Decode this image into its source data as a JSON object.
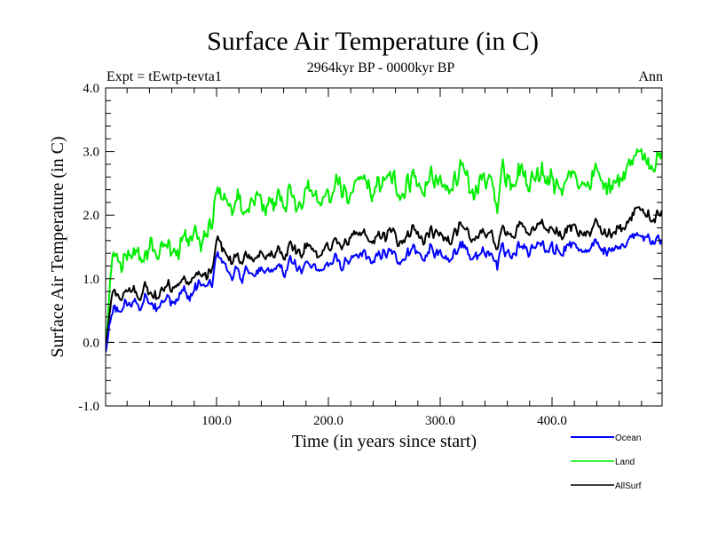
{
  "chart_data": {
    "type": "line",
    "title": "Surface Air Temperature (in C)",
    "subtitle": "2964kyr BP - 0000kyr BP",
    "left_label": "Expt = tEwtp-tevta1",
    "right_label": "Ann",
    "xlabel": "Time (in years since start)",
    "ylabel": "Surface Air Temperature (in C)",
    "xlim": [
      1,
      498
    ],
    "ylim": [
      -1.0,
      4.0
    ],
    "x_ticks": [
      100,
      200,
      300,
      400
    ],
    "x_tick_labels": [
      "100.0",
      "200.0",
      "300.0",
      "400.0"
    ],
    "y_ticks": [
      -1,
      0,
      1,
      2,
      3,
      4
    ],
    "y_tick_labels": [
      "-1.0",
      "0.0",
      "1.0",
      "2.0",
      "3.0",
      "4.0"
    ],
    "reference_line": {
      "y": 0.0,
      "style": "dashed"
    },
    "legend_position": "bottom-right",
    "grid": false,
    "series": [
      {
        "name": "Ocean",
        "color": "#0000ff",
        "x_step": 5,
        "x_start": 1,
        "values": [
          -0.15,
          0.45,
          0.5,
          0.55,
          0.6,
          0.62,
          0.55,
          0.7,
          0.58,
          0.5,
          0.62,
          0.72,
          0.68,
          0.75,
          0.8,
          0.7,
          0.85,
          0.9,
          0.82,
          0.95,
          1.4,
          1.3,
          1.05,
          1.1,
          1.0,
          1.15,
          1.05,
          1.1,
          1.2,
          1.08,
          1.1,
          1.25,
          1.15,
          1.3,
          1.2,
          1.1,
          1.25,
          1.2,
          1.15,
          1.2,
          1.22,
          1.3,
          1.2,
          1.25,
          1.35,
          1.3,
          1.4,
          1.3,
          1.25,
          1.4,
          1.35,
          1.45,
          1.35,
          1.3,
          1.4,
          1.5,
          1.35,
          1.3,
          1.45,
          1.38,
          1.35,
          1.3,
          1.4,
          1.5,
          1.45,
          1.35,
          1.3,
          1.45,
          1.4,
          1.35,
          1.25,
          1.5,
          1.4,
          1.45,
          1.55,
          1.5,
          1.45,
          1.55,
          1.6,
          1.45,
          1.5,
          1.4,
          1.45,
          1.55,
          1.5,
          1.45,
          1.4,
          1.5,
          1.55,
          1.45,
          1.5,
          1.45,
          1.55,
          1.5,
          1.65,
          1.75,
          1.6,
          1.65,
          1.6,
          1.6
        ]
      },
      {
        "name": "Land",
        "color": "#00ee00",
        "x_step": 5,
        "x_start": 1,
        "values": [
          -0.1,
          1.2,
          1.35,
          1.25,
          1.4,
          1.3,
          1.45,
          1.25,
          1.5,
          1.35,
          1.5,
          1.55,
          1.6,
          1.45,
          1.65,
          1.6,
          1.75,
          1.55,
          1.7,
          1.8,
          2.45,
          2.3,
          2.2,
          2.1,
          2.25,
          2.0,
          2.15,
          2.3,
          2.2,
          2.1,
          2.15,
          2.35,
          2.25,
          2.4,
          2.15,
          2.05,
          2.5,
          2.3,
          2.25,
          2.35,
          2.3,
          2.4,
          2.55,
          2.3,
          2.35,
          2.5,
          2.6,
          2.4,
          2.3,
          2.5,
          2.55,
          2.6,
          2.45,
          2.35,
          2.5,
          2.65,
          2.45,
          2.35,
          2.55,
          2.5,
          2.45,
          2.35,
          2.55,
          2.7,
          2.6,
          2.4,
          2.25,
          2.65,
          2.55,
          2.45,
          2.2,
          2.8,
          2.55,
          2.6,
          2.75,
          2.6,
          2.5,
          2.65,
          2.8,
          2.55,
          2.6,
          2.4,
          2.5,
          2.65,
          2.6,
          2.5,
          2.4,
          2.55,
          2.7,
          2.5,
          2.55,
          2.45,
          2.65,
          2.55,
          2.8,
          3.1,
          2.8,
          2.9,
          2.75,
          2.95
        ]
      },
      {
        "name": "AllSurf",
        "color": "#000000",
        "x_step": 5,
        "x_start": 1,
        "values": [
          -0.1,
          0.7,
          0.75,
          0.72,
          0.8,
          0.78,
          0.7,
          0.88,
          0.75,
          0.7,
          0.82,
          0.92,
          0.88,
          0.95,
          1.0,
          0.92,
          1.05,
          1.1,
          1.0,
          1.15,
          1.65,
          1.5,
          1.3,
          1.32,
          1.25,
          1.38,
          1.28,
          1.35,
          1.45,
          1.3,
          1.35,
          1.5,
          1.4,
          1.55,
          1.45,
          1.35,
          1.55,
          1.45,
          1.4,
          1.5,
          1.48,
          1.6,
          1.5,
          1.55,
          1.7,
          1.6,
          1.72,
          1.6,
          1.55,
          1.7,
          1.65,
          1.75,
          1.65,
          1.6,
          1.7,
          1.82,
          1.65,
          1.6,
          1.75,
          1.7,
          1.65,
          1.58,
          1.7,
          1.85,
          1.75,
          1.65,
          1.55,
          1.8,
          1.72,
          1.65,
          1.5,
          1.85,
          1.72,
          1.75,
          1.88,
          1.8,
          1.72,
          1.85,
          1.95,
          1.75,
          1.8,
          1.65,
          1.72,
          1.85,
          1.8,
          1.72,
          1.65,
          1.78,
          1.88,
          1.72,
          1.78,
          1.7,
          1.85,
          1.78,
          1.95,
          2.2,
          2.0,
          2.05,
          1.95,
          2.05
        ]
      }
    ]
  }
}
